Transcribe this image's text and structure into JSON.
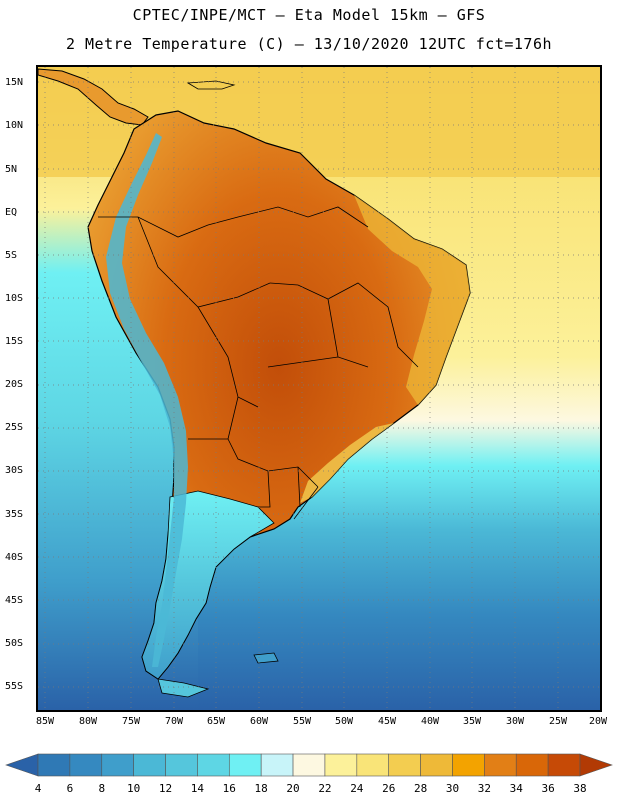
{
  "header": {
    "line1": "CPTEC/INPE/MCT –  Eta Model 15km – GFS",
    "line2": "2 Metre Temperature (C) – 13/10/2020 12UTC fct=176h"
  },
  "map": {
    "lat_labels": [
      "15N",
      "10N",
      "5N",
      "EQ",
      "5S",
      "10S",
      "15S",
      "20S",
      "25S",
      "30S",
      "35S",
      "40S",
      "45S",
      "50S",
      "55S"
    ],
    "lon_labels": [
      "85W",
      "80W",
      "75W",
      "70W",
      "65W",
      "60W",
      "55W",
      "50W",
      "45W",
      "40W",
      "35W",
      "30W",
      "25W",
      "20W"
    ],
    "lat_range": [
      17,
      -58
    ],
    "lon_range": [
      -86,
      -20
    ]
  },
  "colorbar": {
    "labels": [
      "4",
      "6",
      "8",
      "10",
      "12",
      "14",
      "16",
      "18",
      "20",
      "22",
      "24",
      "26",
      "28",
      "30",
      "32",
      "34",
      "36",
      "38"
    ],
    "colors": [
      "#2a62a8",
      "#2f79b5",
      "#3589c0",
      "#3f9ecb",
      "#4bb8d6",
      "#55c6dc",
      "#5ed6e4",
      "#6ff0f3",
      "#c8f4f9",
      "#fdf8e1",
      "#fcf19a",
      "#f9e478",
      "#f3cd50",
      "#eeb938",
      "#f3a300",
      "#e27f16",
      "#d96708",
      "#c64a06",
      "#b23a04"
    ]
  }
}
